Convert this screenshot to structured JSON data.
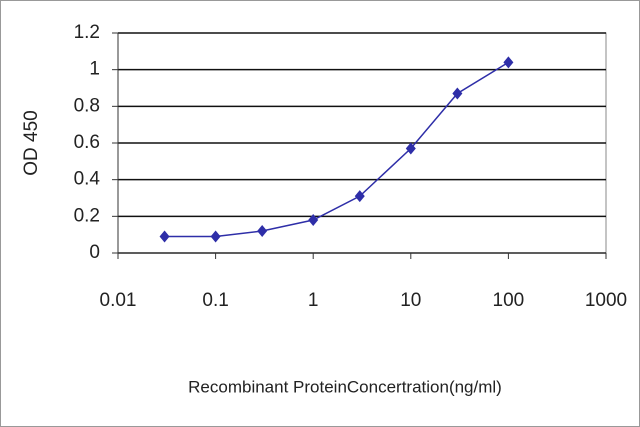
{
  "chart_data": {
    "type": "line",
    "x_label": "Recombinant ProteinConcertration(ng/ml)",
    "y_label": "OD 450",
    "x": [
      0.03,
      0.1,
      0.3,
      1,
      3,
      10,
      30,
      100
    ],
    "series": [
      {
        "name": "OD 450",
        "color": "#2e2ea8",
        "values": [
          0.09,
          0.09,
          0.12,
          0.18,
          0.31,
          0.57,
          0.87,
          1.04
        ]
      }
    ],
    "xlim": [
      0.01,
      1000
    ],
    "xticks": [
      0.01,
      0.1,
      1,
      10,
      100,
      1000
    ],
    "xscale": "log",
    "ylim": [
      0,
      1.2
    ],
    "yticks": [
      0,
      0.2,
      0.4,
      0.6,
      0.8,
      1,
      1.2
    ],
    "grid": true
  }
}
